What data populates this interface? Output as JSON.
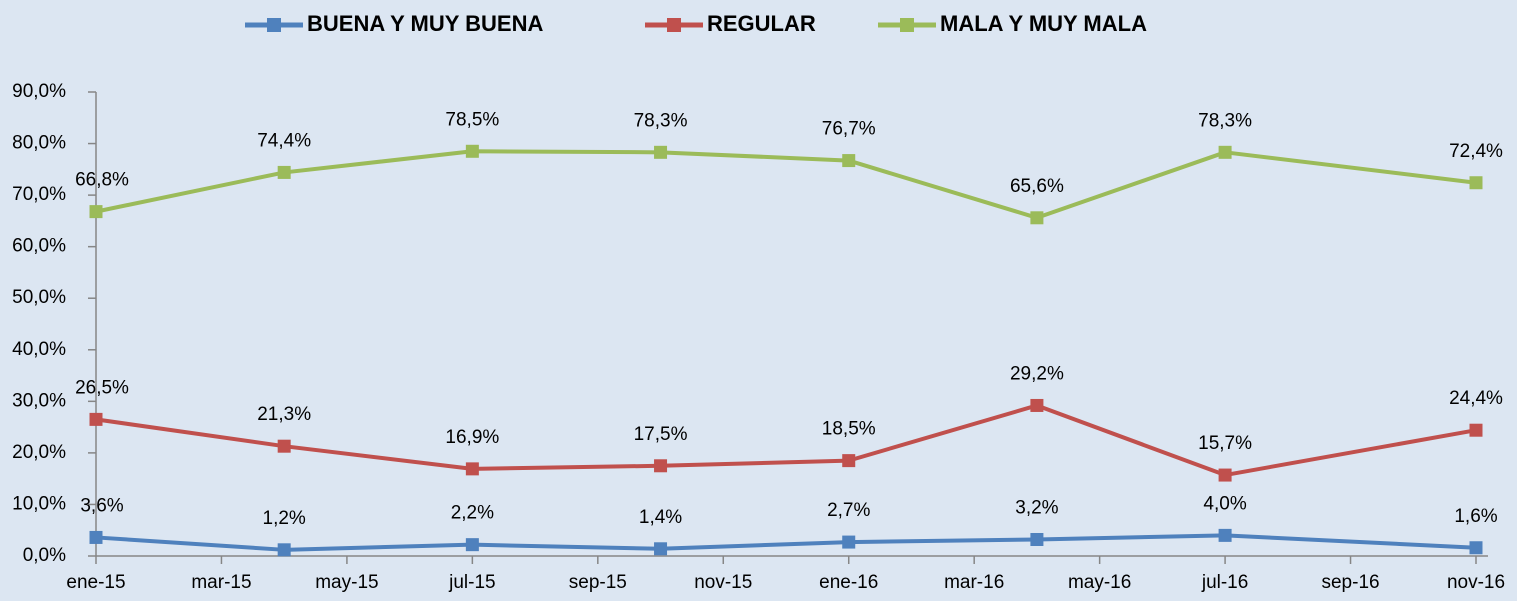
{
  "chart_data": {
    "type": "line",
    "x": [
      "2015-01",
      "2015-04",
      "2015-07",
      "2015-10",
      "2016-01",
      "2016-04",
      "2016-07",
      "2016-11"
    ],
    "series": [
      {
        "name": "BUENA Y MUY BUENA",
        "color": "#4f81bd",
        "values": [
          3.6,
          1.2,
          2.2,
          1.4,
          2.7,
          3.2,
          4.0,
          1.6
        ],
        "value_labels": [
          "3,6%",
          "1,2%",
          "2,2%",
          "1,4%",
          "2,7%",
          "3,2%",
          "4,0%",
          "1,6%"
        ]
      },
      {
        "name": "REGULAR",
        "color": "#c0504d",
        "values": [
          26.5,
          21.3,
          16.9,
          17.5,
          18.5,
          29.2,
          15.7,
          24.4
        ],
        "value_labels": [
          "26,5%",
          "21,3%",
          "16,9%",
          "17,5%",
          "18,5%",
          "29,2%",
          "15,7%",
          "24,4%"
        ]
      },
      {
        "name": "MALA Y MUY MALA",
        "color": "#9bbb59",
        "values": [
          66.8,
          74.4,
          78.5,
          78.3,
          76.7,
          65.6,
          78.3,
          72.4
        ],
        "value_labels": [
          "66,8%",
          "74,4%",
          "78,5%",
          "78,3%",
          "76,7%",
          "65,6%",
          "78,3%",
          "72,4%"
        ]
      }
    ],
    "xlim": [
      "2015-01",
      "2016-11"
    ],
    "xticks": [
      {
        "value": "2015-01",
        "label": "ene-15"
      },
      {
        "value": "2015-03",
        "label": "mar-15"
      },
      {
        "value": "2015-05",
        "label": "may-15"
      },
      {
        "value": "2015-07",
        "label": "jul-15"
      },
      {
        "value": "2015-09",
        "label": "sep-15"
      },
      {
        "value": "2015-11",
        "label": "nov-15"
      },
      {
        "value": "2016-01",
        "label": "ene-16"
      },
      {
        "value": "2016-03",
        "label": "mar-16"
      },
      {
        "value": "2016-05",
        "label": "may-16"
      },
      {
        "value": "2016-07",
        "label": "jul-16"
      },
      {
        "value": "2016-09",
        "label": "sep-16"
      },
      {
        "value": "2016-11",
        "label": "nov-16"
      }
    ],
    "ylim": [
      0,
      90
    ],
    "yticks": [
      {
        "value": 0,
        "label": "0,0%"
      },
      {
        "value": 10,
        "label": "10,0%"
      },
      {
        "value": 20,
        "label": "20,0%"
      },
      {
        "value": 30,
        "label": "30,0%"
      },
      {
        "value": 40,
        "label": "40,0%"
      },
      {
        "value": 50,
        "label": "50,0%"
      },
      {
        "value": 60,
        "label": "60,0%"
      },
      {
        "value": 70,
        "label": "70,0%"
      },
      {
        "value": 80,
        "label": "80,0%"
      },
      {
        "value": 90,
        "label": "90,0%"
      }
    ],
    "grid": false,
    "legend": "top"
  }
}
